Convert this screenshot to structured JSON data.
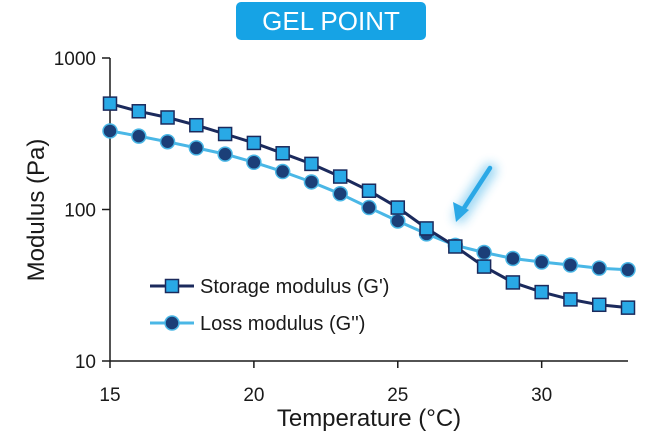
{
  "chart_data": {
    "type": "line",
    "title": "GEL POINT",
    "xlabel": "Temperature (°C)",
    "ylabel": "Modulus (Pa)",
    "xlim": [
      15,
      33
    ],
    "ylim": [
      10,
      1000
    ],
    "y_scale": "log",
    "grid": false,
    "legend_position": "bottom-left",
    "x_ticks": [
      "15",
      "20",
      "25",
      "30"
    ],
    "y_ticks": [
      "10",
      "100",
      "1000"
    ],
    "x": [
      15,
      16,
      17,
      18,
      19,
      20,
      21,
      22,
      23,
      24,
      25,
      26,
      27,
      28,
      29,
      30,
      31,
      32,
      33
    ],
    "series": [
      {
        "name": "Storage modulus (G')",
        "marker": "square",
        "line_color": "#1b2a5c",
        "marker_color": "#29a9e6",
        "values": [
          500,
          445,
          405,
          360,
          315,
          275,
          235,
          200,
          165,
          133,
          103,
          75,
          57,
          42,
          33,
          28.5,
          25.5,
          23.5,
          22.5
        ]
      },
      {
        "name": "Loss modulus (G'')",
        "marker": "circle",
        "line_color": "#4ab7e6",
        "marker_color": "#1b3f78",
        "values": [
          330,
          305,
          280,
          255,
          232,
          205,
          178,
          152,
          127,
          103,
          84,
          69,
          58,
          52,
          47.5,
          45,
          43,
          41,
          40
        ]
      }
    ],
    "annotation": {
      "type": "arrow",
      "color": "#2aa8e6",
      "x": 27,
      "y": 58
    }
  },
  "colors": {
    "badge": "#16a3e5",
    "axis": "#1a1a1a"
  },
  "badge": {
    "text": "GEL POINT"
  }
}
